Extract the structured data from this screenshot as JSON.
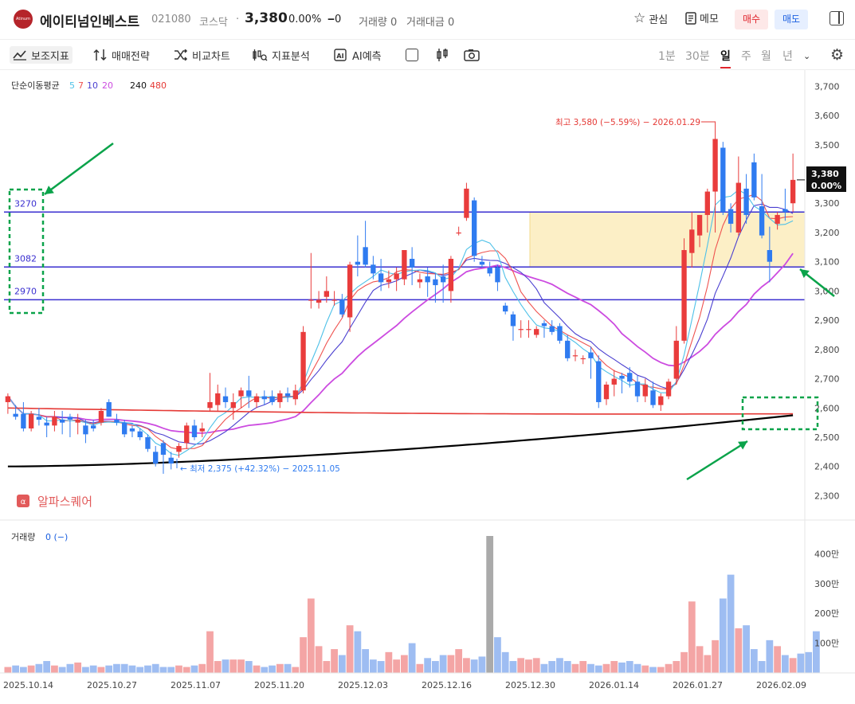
{
  "header": {
    "stock_name": "에이티넘인베스트",
    "logo_text": "Atinum",
    "code": "021080",
    "market": "코스닥",
    "separator": "·",
    "price": "3,380",
    "change_pct": "0.00%",
    "change_abs": "0",
    "volume_text": "거래량 0",
    "amount_text": "거래대금 0",
    "watch_label": "관심",
    "memo_label": "메모",
    "buy_label": "매수",
    "sell_label": "매도"
  },
  "toolbar": {
    "indicators_label": "보조지표",
    "strategy_label": "매매전략",
    "compare_label": "비교차트",
    "indicator_analysis_label": "지표분석",
    "ai_label": "AI예측",
    "periods": [
      "1분",
      "30분",
      "일",
      "주",
      "월",
      "년"
    ],
    "active_period": "일"
  },
  "colors": {
    "up": "#e93c3c",
    "down": "#2f7bf0",
    "ma5": "#4ec1e8",
    "ma7": "#ef5350",
    "ma10": "#4a3fd0",
    "ma20": "#cc4be0",
    "ma240": "#000000",
    "ma480": "#e53935",
    "vol_up": "#f4a5a5",
    "vol_down": "#9ebdf2",
    "vol_flat": "#aaaaaa",
    "annotation": "#0aa34a"
  },
  "chart_data": {
    "type": "candlestick",
    "ma_legend": {
      "label": "단순이동평균",
      "periods": [
        "5",
        "7",
        "10",
        "20",
        "240",
        "480"
      ]
    },
    "x_tick_labels": [
      "2025.10.14",
      "2025.10.27",
      "2025.11.07",
      "2025.11.20",
      "2025.12.03",
      "2025.12.16",
      "2025.12.30",
      "2026.01.14",
      "2026.01.27",
      "2026.02.09"
    ],
    "y_ticks": [
      2300,
      2400,
      2500,
      2600,
      2700,
      2800,
      2900,
      3000,
      3100,
      3200,
      3300,
      3400,
      3500,
      3600,
      3700
    ],
    "ylim": [
      2225,
      3750
    ],
    "current_price_label": "3,380",
    "current_pct_label": "0.00%",
    "high_annotation": "최고 3,580 (−5.59%) − 2026.01.29",
    "low_annotation": "← 최저 2,375 (+42.32%) − 2025.11.05",
    "horizontal_levels": [
      3270,
      3082,
      2970
    ],
    "level_labels": [
      "3270",
      "3082",
      "2970"
    ],
    "zone": {
      "from": 3082,
      "to": 3270
    },
    "candles": [
      {
        "o": 2620,
        "h": 2650,
        "l": 2580,
        "c": 2640
      },
      {
        "o": 2580,
        "h": 2610,
        "l": 2560,
        "c": 2570
      },
      {
        "o": 2580,
        "h": 2620,
        "l": 2520,
        "c": 2530
      },
      {
        "o": 2530,
        "h": 2590,
        "l": 2520,
        "c": 2580
      },
      {
        "o": 2570,
        "h": 2600,
        "l": 2540,
        "c": 2560
      },
      {
        "o": 2550,
        "h": 2570,
        "l": 2500,
        "c": 2540
      },
      {
        "o": 2540,
        "h": 2590,
        "l": 2520,
        "c": 2570
      },
      {
        "o": 2560,
        "h": 2590,
        "l": 2510,
        "c": 2550
      },
      {
        "o": 2570,
        "h": 2580,
        "l": 2500,
        "c": 2560
      },
      {
        "o": 2550,
        "h": 2580,
        "l": 2510,
        "c": 2560
      },
      {
        "o": 2540,
        "h": 2560,
        "l": 2480,
        "c": 2510
      },
      {
        "o": 2540,
        "h": 2560,
        "l": 2520,
        "c": 2530
      },
      {
        "o": 2550,
        "h": 2600,
        "l": 2540,
        "c": 2590
      },
      {
        "o": 2620,
        "h": 2630,
        "l": 2570,
        "c": 2570
      },
      {
        "o": 2560,
        "h": 2580,
        "l": 2540,
        "c": 2550
      },
      {
        "o": 2550,
        "h": 2560,
        "l": 2500,
        "c": 2510
      },
      {
        "o": 2530,
        "h": 2540,
        "l": 2500,
        "c": 2520
      },
      {
        "o": 2520,
        "h": 2530,
        "l": 2490,
        "c": 2500
      },
      {
        "o": 2500,
        "h": 2510,
        "l": 2450,
        "c": 2460
      },
      {
        "o": 2450,
        "h": 2470,
        "l": 2400,
        "c": 2410
      },
      {
        "o": 2480,
        "h": 2490,
        "l": 2375,
        "c": 2440
      },
      {
        "o": 2430,
        "h": 2450,
        "l": 2390,
        "c": 2410
      },
      {
        "o": 2450,
        "h": 2480,
        "l": 2430,
        "c": 2470
      },
      {
        "o": 2480,
        "h": 2550,
        "l": 2460,
        "c": 2540
      },
      {
        "o": 2540,
        "h": 2560,
        "l": 2490,
        "c": 2500
      },
      {
        "o": 2520,
        "h": 2550,
        "l": 2500,
        "c": 2530
      },
      {
        "o": 2600,
        "h": 2720,
        "l": 2590,
        "c": 2620
      },
      {
        "o": 2610,
        "h": 2680,
        "l": 2590,
        "c": 2650
      },
      {
        "o": 2640,
        "h": 2670,
        "l": 2600,
        "c": 2620
      },
      {
        "o": 2600,
        "h": 2650,
        "l": 2560,
        "c": 2620
      },
      {
        "o": 2640,
        "h": 2670,
        "l": 2600,
        "c": 2660
      },
      {
        "o": 2660,
        "h": 2710,
        "l": 2600,
        "c": 2640
      },
      {
        "o": 2620,
        "h": 2650,
        "l": 2600,
        "c": 2640
      },
      {
        "o": 2640,
        "h": 2660,
        "l": 2610,
        "c": 2630
      },
      {
        "o": 2640,
        "h": 2660,
        "l": 2610,
        "c": 2620
      },
      {
        "o": 2620,
        "h": 2660,
        "l": 2600,
        "c": 2650
      },
      {
        "o": 2650,
        "h": 2670,
        "l": 2620,
        "c": 2640
      },
      {
        "o": 2630,
        "h": 2680,
        "l": 2610,
        "c": 2660
      },
      {
        "o": 2660,
        "h": 2880,
        "l": 2650,
        "c": 2860
      },
      {
        "o": 2970,
        "h": 3130,
        "l": 2940,
        "c": 2970
      },
      {
        "o": 2960,
        "h": 3000,
        "l": 2940,
        "c": 2970
      },
      {
        "o": 2980,
        "h": 3050,
        "l": 2960,
        "c": 3000
      },
      {
        "o": 2970,
        "h": 3000,
        "l": 2950,
        "c": 2970
      },
      {
        "o": 2970,
        "h": 2990,
        "l": 2910,
        "c": 2920
      },
      {
        "o": 2910,
        "h": 3100,
        "l": 2860,
        "c": 3090
      },
      {
        "o": 3100,
        "h": 3190,
        "l": 3050,
        "c": 3090
      },
      {
        "o": 3150,
        "h": 3240,
        "l": 3080,
        "c": 3090
      },
      {
        "o": 3090,
        "h": 3120,
        "l": 3040,
        "c": 3060
      },
      {
        "o": 3060,
        "h": 3110,
        "l": 3000,
        "c": 3030
      },
      {
        "o": 3030,
        "h": 3070,
        "l": 3010,
        "c": 3040
      },
      {
        "o": 3040,
        "h": 3080,
        "l": 3000,
        "c": 3060
      },
      {
        "o": 3040,
        "h": 3140,
        "l": 3020,
        "c": 3140
      },
      {
        "o": 3110,
        "h": 3150,
        "l": 3020,
        "c": 3080
      },
      {
        "o": 3030,
        "h": 3060,
        "l": 3010,
        "c": 3040
      },
      {
        "o": 3050,
        "h": 3080,
        "l": 2980,
        "c": 3030
      },
      {
        "o": 3040,
        "h": 3060,
        "l": 2960,
        "c": 3020
      },
      {
        "o": 3050,
        "h": 3090,
        "l": 2960,
        "c": 3030
      },
      {
        "o": 3000,
        "h": 3120,
        "l": 2960,
        "c": 3110
      },
      {
        "o": 3200,
        "h": 3220,
        "l": 3190,
        "c": 3200
      },
      {
        "o": 3250,
        "h": 3370,
        "l": 3240,
        "c": 3350
      },
      {
        "o": 3310,
        "h": 3320,
        "l": 3100,
        "c": 3120
      },
      {
        "o": 3100,
        "h": 3120,
        "l": 3080,
        "c": 3090
      },
      {
        "o": 3080,
        "h": 3100,
        "l": 3050,
        "c": 3060
      },
      {
        "o": 3080,
        "h": 3090,
        "l": 3000,
        "c": 3030
      },
      {
        "o": 2950,
        "h": 2960,
        "l": 2920,
        "c": 2930
      },
      {
        "o": 2920,
        "h": 2930,
        "l": 2830,
        "c": 2880
      },
      {
        "o": 2870,
        "h": 2900,
        "l": 2840,
        "c": 2870
      },
      {
        "o": 2870,
        "h": 2900,
        "l": 2840,
        "c": 2870
      },
      {
        "o": 2850,
        "h": 2880,
        "l": 2840,
        "c": 2870
      },
      {
        "o": 2890,
        "h": 2900,
        "l": 2840,
        "c": 2880
      },
      {
        "o": 2880,
        "h": 2900,
        "l": 2850,
        "c": 2860
      },
      {
        "o": 2880,
        "h": 2890,
        "l": 2820,
        "c": 2830
      },
      {
        "o": 2830,
        "h": 2850,
        "l": 2760,
        "c": 2770
      },
      {
        "o": 2780,
        "h": 2800,
        "l": 2760,
        "c": 2780
      },
      {
        "o": 2770,
        "h": 2780,
        "l": 2750,
        "c": 2770
      },
      {
        "o": 2790,
        "h": 2810,
        "l": 2700,
        "c": 2770
      },
      {
        "o": 2760,
        "h": 2780,
        "l": 2600,
        "c": 2620
      },
      {
        "o": 2630,
        "h": 2690,
        "l": 2610,
        "c": 2680
      },
      {
        "o": 2680,
        "h": 2730,
        "l": 2640,
        "c": 2700
      },
      {
        "o": 2710,
        "h": 2720,
        "l": 2650,
        "c": 2700
      },
      {
        "o": 2720,
        "h": 2740,
        "l": 2670,
        "c": 2690
      },
      {
        "o": 2690,
        "h": 2710,
        "l": 2620,
        "c": 2640
      },
      {
        "o": 2640,
        "h": 2700,
        "l": 2620,
        "c": 2680
      },
      {
        "o": 2660,
        "h": 2690,
        "l": 2600,
        "c": 2610
      },
      {
        "o": 2610,
        "h": 2650,
        "l": 2590,
        "c": 2640
      },
      {
        "o": 2640,
        "h": 2700,
        "l": 2630,
        "c": 2690
      },
      {
        "o": 2700,
        "h": 2880,
        "l": 2680,
        "c": 2830
      },
      {
        "o": 2830,
        "h": 3180,
        "l": 2820,
        "c": 3140
      },
      {
        "o": 3130,
        "h": 3270,
        "l": 3080,
        "c": 3210
      },
      {
        "o": 3190,
        "h": 3250,
        "l": 3150,
        "c": 3260
      },
      {
        "o": 3260,
        "h": 3350,
        "l": 3200,
        "c": 3340
      },
      {
        "o": 3340,
        "h": 3580,
        "l": 3200,
        "c": 3520
      },
      {
        "o": 3490,
        "h": 3510,
        "l": 3260,
        "c": 3270
      },
      {
        "o": 3280,
        "h": 3300,
        "l": 3200,
        "c": 3230
      },
      {
        "o": 3200,
        "h": 3460,
        "l": 3190,
        "c": 3370
      },
      {
        "o": 3350,
        "h": 3400,
        "l": 3230,
        "c": 3260
      },
      {
        "o": 3440,
        "h": 3470,
        "l": 3310,
        "c": 3320
      },
      {
        "o": 3290,
        "h": 3400,
        "l": 3180,
        "c": 3190
      },
      {
        "o": 3140,
        "h": 3220,
        "l": 3030,
        "c": 3100
      },
      {
        "o": 3230,
        "h": 3270,
        "l": 3210,
        "c": 3260
      },
      {
        "o": 3280,
        "h": 3350,
        "l": 3240,
        "c": 3270
      },
      {
        "o": 3300,
        "h": 3470,
        "l": 3270,
        "c": 3380
      }
    ],
    "volume_ticks": [
      "100만",
      "200만",
      "300만",
      "400만"
    ],
    "volume_label": "거래량",
    "volume_value": "0 (−)",
    "volumes": [
      20000,
      25000,
      20000,
      25000,
      30000,
      40000,
      25000,
      20000,
      30000,
      35000,
      20000,
      25000,
      20000,
      25000,
      30000,
      30000,
      25000,
      20000,
      25000,
      30000,
      20000,
      20000,
      25000,
      20000,
      25000,
      30000,
      140000,
      40000,
      45000,
      45000,
      45000,
      40000,
      25000,
      20000,
      25000,
      30000,
      30000,
      20000,
      120000,
      250000,
      90000,
      40000,
      80000,
      60000,
      160000,
      140000,
      80000,
      45000,
      40000,
      70000,
      45000,
      60000,
      100000,
      30000,
      50000,
      40000,
      60000,
      60000,
      80000,
      50000,
      45000,
      55000,
      460000,
      120000,
      70000,
      40000,
      50000,
      45000,
      50000,
      30000,
      40000,
      50000,
      40000,
      30000,
      40000,
      30000,
      25000,
      30000,
      40000,
      35000,
      40000,
      30000,
      25000,
      20000,
      20000,
      30000,
      40000,
      70000,
      240000,
      90000,
      60000,
      110000,
      250000,
      330000,
      150000,
      160000,
      80000,
      40000,
      110000,
      90000,
      60000,
      50000,
      65000,
      70000,
      140000
    ],
    "volume_max": 460000
  },
  "watermark": "알파스퀘어"
}
